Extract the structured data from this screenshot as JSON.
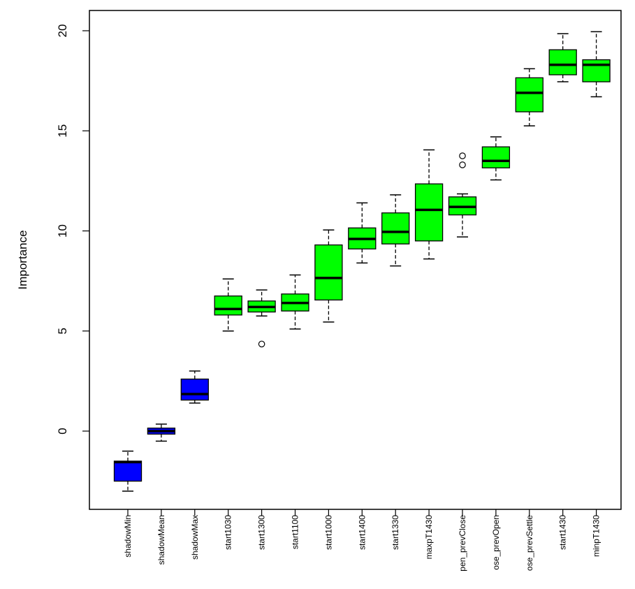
{
  "chart_data": {
    "type": "box",
    "title": "",
    "xlabel": "",
    "ylabel": "Importance",
    "ylim": [
      -4,
      21
    ],
    "yticks": [
      0,
      5,
      10,
      15,
      20
    ],
    "grid": false,
    "colors": {
      "shadow": "#0000ff",
      "confirmed": "#00ff00"
    },
    "boxes": [
      {
        "label": "shadowMin",
        "group": "shadow",
        "whisker_low": -3.0,
        "q1": -2.5,
        "median": -1.55,
        "q3": -1.5,
        "whisker_high": -1.0,
        "outliers": []
      },
      {
        "label": "shadowMean",
        "group": "shadow",
        "whisker_low": -0.5,
        "q1": -0.15,
        "median": 0.0,
        "q3": 0.15,
        "whisker_high": 0.35,
        "outliers": []
      },
      {
        "label": "shadowMax",
        "group": "shadow",
        "whisker_low": 1.4,
        "q1": 1.55,
        "median": 1.85,
        "q3": 2.6,
        "whisker_high": 3.0,
        "outliers": []
      },
      {
        "label": "start1030",
        "group": "confirmed",
        "whisker_low": 5.0,
        "q1": 5.8,
        "median": 6.1,
        "q3": 6.75,
        "whisker_high": 7.6,
        "outliers": []
      },
      {
        "label": "start1300",
        "group": "confirmed",
        "whisker_low": 5.75,
        "q1": 5.95,
        "median": 6.2,
        "q3": 6.5,
        "whisker_high": 7.05,
        "outliers": [
          4.35
        ]
      },
      {
        "label": "start1100",
        "group": "confirmed",
        "whisker_low": 5.1,
        "q1": 6.0,
        "median": 6.4,
        "q3": 6.85,
        "whisker_high": 7.8,
        "outliers": []
      },
      {
        "label": "start1000",
        "group": "confirmed",
        "whisker_low": 5.45,
        "q1": 6.55,
        "median": 7.65,
        "q3": 9.3,
        "whisker_high": 10.05,
        "outliers": []
      },
      {
        "label": "start1400",
        "group": "confirmed",
        "whisker_low": 8.4,
        "q1": 9.1,
        "median": 9.6,
        "q3": 10.15,
        "whisker_high": 11.4,
        "outliers": []
      },
      {
        "label": "start1330",
        "group": "confirmed",
        "whisker_low": 8.25,
        "q1": 9.35,
        "median": 9.95,
        "q3": 10.9,
        "whisker_high": 11.8,
        "outliers": []
      },
      {
        "label": "maxpT1430",
        "group": "confirmed",
        "whisker_low": 8.6,
        "q1": 9.5,
        "median": 11.05,
        "q3": 12.35,
        "whisker_high": 14.05,
        "outliers": []
      },
      {
        "label": "pen_prevClose",
        "group": "confirmed",
        "whisker_low": 9.7,
        "q1": 10.8,
        "median": 11.2,
        "q3": 11.7,
        "whisker_high": 11.85,
        "outliers": [
          13.3,
          13.75
        ]
      },
      {
        "label": "ose_prevOpen",
        "group": "confirmed",
        "whisker_low": 12.55,
        "q1": 13.15,
        "median": 13.5,
        "q3": 14.2,
        "whisker_high": 14.7,
        "outliers": []
      },
      {
        "label": "ose_prevSettle",
        "group": "confirmed",
        "whisker_low": 15.25,
        "q1": 15.95,
        "median": 16.9,
        "q3": 17.65,
        "whisker_high": 18.1,
        "outliers": []
      },
      {
        "label": "start1430",
        "group": "confirmed",
        "whisker_low": 17.45,
        "q1": 17.8,
        "median": 18.3,
        "q3": 19.05,
        "whisker_high": 19.85,
        "outliers": []
      },
      {
        "label": "minpT1430",
        "group": "confirmed",
        "whisker_low": 16.7,
        "q1": 17.45,
        "median": 18.3,
        "q3": 18.55,
        "whisker_high": 19.95,
        "outliers": []
      }
    ]
  }
}
